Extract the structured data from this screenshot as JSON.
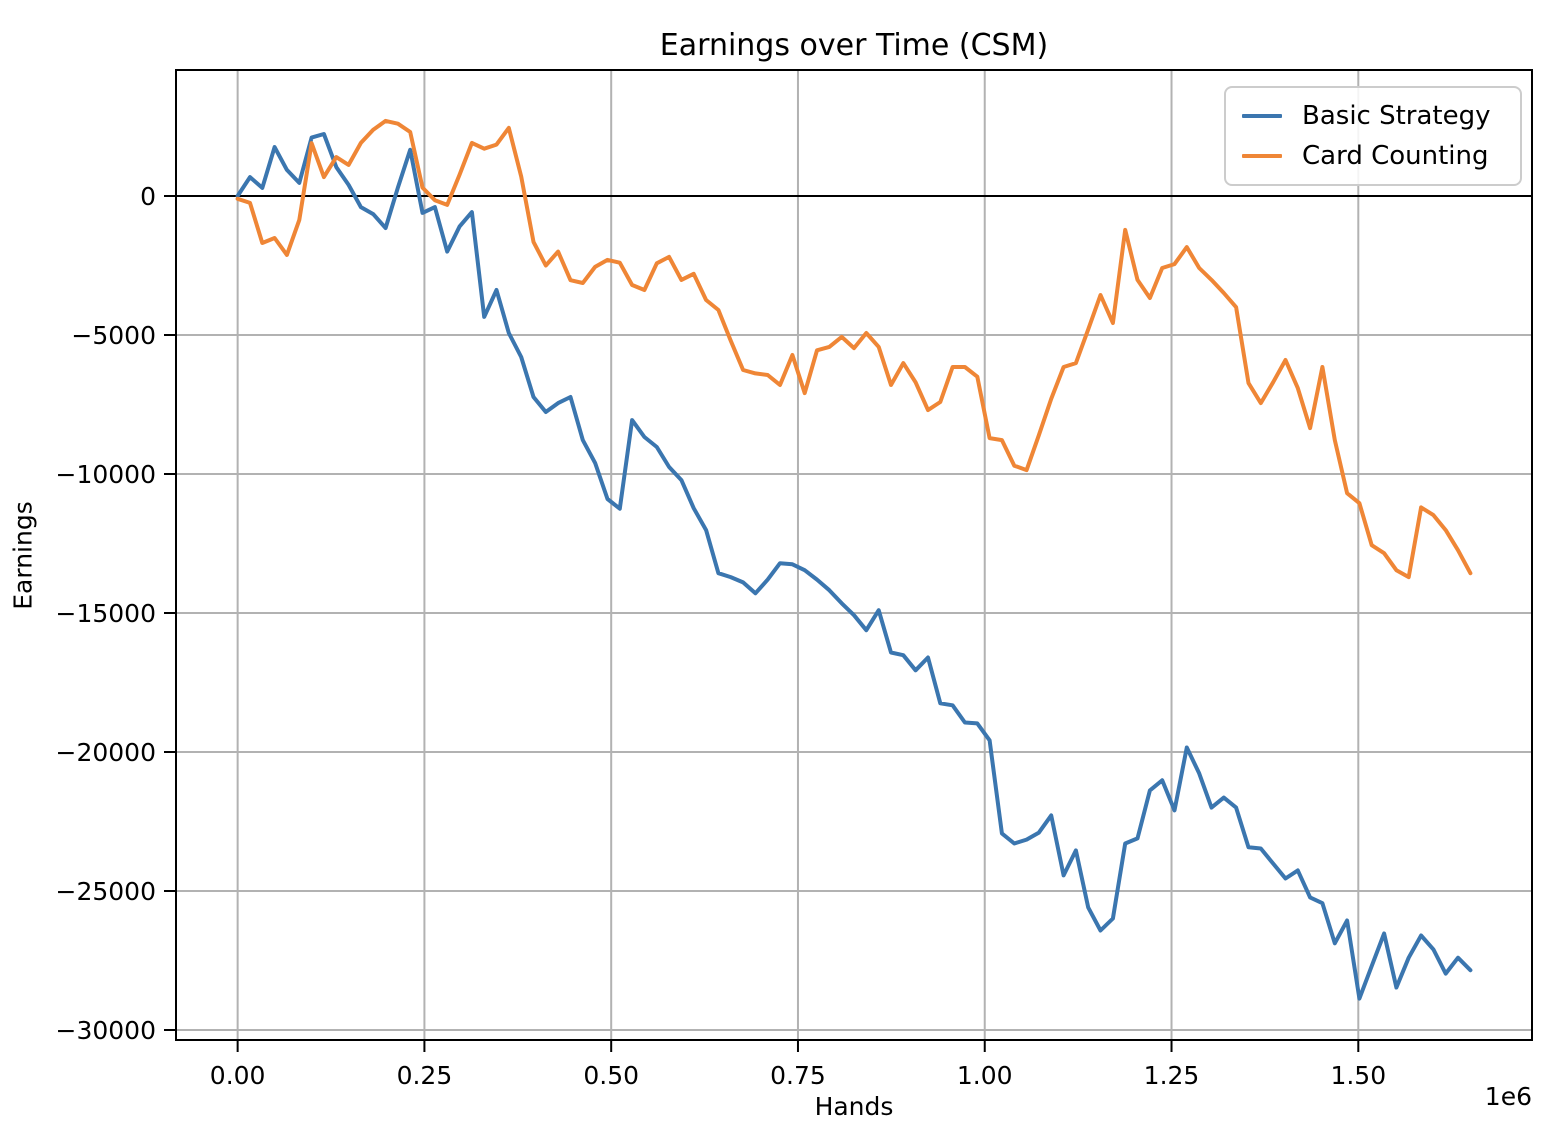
{
  "chart_data": {
    "type": "line",
    "title": "Earnings over Time (CSM)",
    "xlabel": "Hands",
    "ylabel": "Earnings",
    "x_offset_label": "1e6",
    "xlim": [
      -82500,
      1732500
    ],
    "ylim": [
      -30360,
      4532
    ],
    "grid": true,
    "grid_color": "#b2b2b2",
    "zero_line_color": "#000000",
    "spine_color": "#000000",
    "legend_position": "upper right",
    "x_ticks": [
      {
        "value": 0,
        "label": "0.00"
      },
      {
        "value": 250000,
        "label": "0.25"
      },
      {
        "value": 500000,
        "label": "0.50"
      },
      {
        "value": 750000,
        "label": "0.75"
      },
      {
        "value": 1000000,
        "label": "1.00"
      },
      {
        "value": 1250000,
        "label": "1.25"
      },
      {
        "value": 1500000,
        "label": "1.50"
      }
    ],
    "y_ticks": [
      {
        "value": 0,
        "label": "0"
      },
      {
        "value": -5000,
        "label": "−5000"
      },
      {
        "value": -10000,
        "label": "−10000"
      },
      {
        "value": -15000,
        "label": "−15000"
      },
      {
        "value": -20000,
        "label": "−20000"
      },
      {
        "value": -25000,
        "label": "−25000"
      },
      {
        "value": -30000,
        "label": "−30000"
      }
    ],
    "x": [
      0,
      16500,
      33000,
      49500,
      66000,
      82500,
      99000,
      115500,
      132000,
      148500,
      165000,
      181500,
      198000,
      214500,
      231000,
      247500,
      264000,
      280500,
      297000,
      313500,
      330000,
      346500,
      363000,
      379500,
      396000,
      412500,
      429000,
      445500,
      462000,
      478500,
      495000,
      511500,
      528000,
      544500,
      561000,
      577500,
      594000,
      610500,
      627000,
      643500,
      660000,
      676500,
      693000,
      709500,
      726000,
      742500,
      759000,
      775500,
      792000,
      808500,
      825000,
      841500,
      858000,
      874500,
      891000,
      907500,
      924000,
      940500,
      957000,
      973500,
      990000,
      1006500,
      1023000,
      1039500,
      1056000,
      1072500,
      1089000,
      1105500,
      1122000,
      1138500,
      1155000,
      1171500,
      1188000,
      1204500,
      1221000,
      1237500,
      1254000,
      1270500,
      1287000,
      1303500,
      1320000,
      1336500,
      1353000,
      1369500,
      1386000,
      1402500,
      1419000,
      1435500,
      1452000,
      1468500,
      1485000,
      1501500,
      1518000,
      1534500,
      1551000,
      1567500,
      1584000,
      1600500,
      1617000,
      1633500,
      1650000
    ],
    "series": [
      {
        "name": "Basic Strategy",
        "color": "#3b76af",
        "values": [
          0,
          680,
          290,
          1760,
          940,
          470,
          2100,
          2230,
          1040,
          400,
          -400,
          -650,
          -1150,
          300,
          1660,
          -610,
          -400,
          -2000,
          -1100,
          -580,
          -4350,
          -3380,
          -4930,
          -5790,
          -7230,
          -7770,
          -7450,
          -7230,
          -8780,
          -9600,
          -10900,
          -11250,
          -8060,
          -8670,
          -9030,
          -9750,
          -10220,
          -11230,
          -12020,
          -13570,
          -13710,
          -13900,
          -14290,
          -13800,
          -13210,
          -13250,
          -13460,
          -13800,
          -14180,
          -14650,
          -15080,
          -15620,
          -14900,
          -16420,
          -16520,
          -17060,
          -16600,
          -18250,
          -18320,
          -18940,
          -18970,
          -19580,
          -22930,
          -23290,
          -23150,
          -22900,
          -22280,
          -24440,
          -23540,
          -25590,
          -26420,
          -25990,
          -23290,
          -23110,
          -21380,
          -21020,
          -22100,
          -19840,
          -20770,
          -22000,
          -21640,
          -22000,
          -23430,
          -23470,
          -24010,
          -24550,
          -24260,
          -25230,
          -25440,
          -26880,
          -26060,
          -28870,
          -27700,
          -26530,
          -28470,
          -27400,
          -26600,
          -27100,
          -27970,
          -27400,
          -27850
        ]
      },
      {
        "name": "Card Counting",
        "color": "#ef8636",
        "values": [
          -100,
          -250,
          -1690,
          -1510,
          -2120,
          -860,
          1900,
          680,
          1400,
          1120,
          1910,
          2380,
          2700,
          2600,
          2300,
          300,
          -150,
          -320,
          760,
          1910,
          1700,
          1850,
          2450,
          700,
          -1650,
          -2500,
          -2000,
          -3030,
          -3130,
          -2550,
          -2300,
          -2400,
          -3200,
          -3380,
          -2420,
          -2190,
          -3020,
          -2800,
          -3740,
          -4100,
          -5200,
          -6260,
          -6380,
          -6440,
          -6800,
          -5720,
          -7090,
          -5550,
          -5430,
          -5070,
          -5470,
          -4930,
          -5430,
          -6800,
          -6010,
          -6700,
          -7700,
          -7410,
          -6150,
          -6150,
          -6500,
          -8710,
          -8780,
          -9700,
          -9860,
          -8600,
          -7300,
          -6150,
          -6010,
          -4800,
          -3560,
          -4570,
          -1220,
          -3020,
          -3670,
          -2590,
          -2450,
          -1840,
          -2590,
          -3020,
          -3490,
          -4000,
          -6730,
          -7450,
          -6700,
          -5900,
          -6910,
          -8350,
          -6150,
          -8780,
          -10690,
          -11050,
          -12560,
          -12850,
          -13460,
          -13710,
          -11200,
          -11480,
          -12020,
          -12740,
          -13570
        ]
      }
    ]
  }
}
